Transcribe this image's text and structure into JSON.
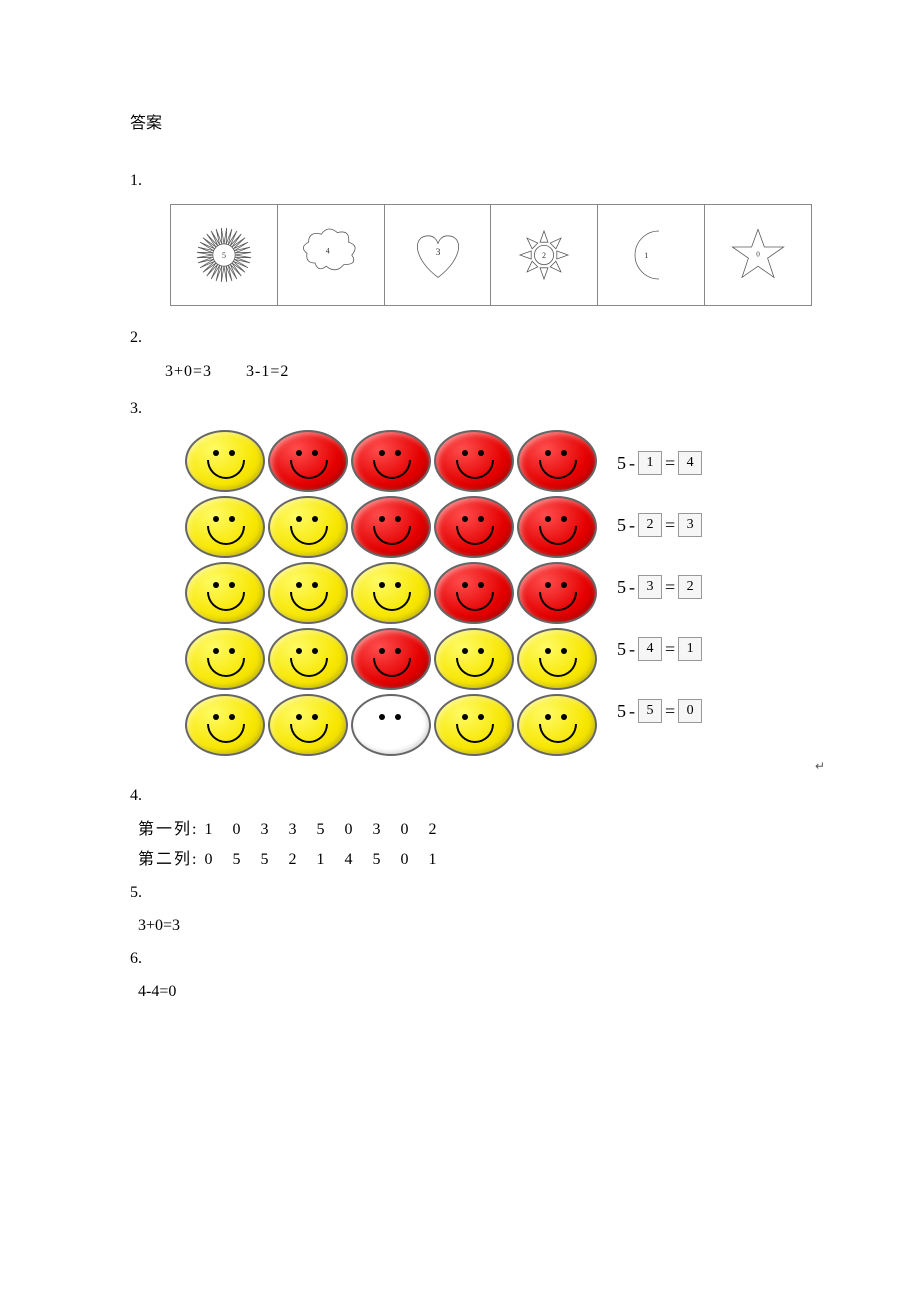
{
  "title": "答案",
  "q1": {
    "num": "1.",
    "shapes": [
      {
        "kind": "sunburst",
        "label": "5"
      },
      {
        "kind": "cloud",
        "label": "4"
      },
      {
        "kind": "heart",
        "label": "3"
      },
      {
        "kind": "sun8",
        "label": "2"
      },
      {
        "kind": "moon",
        "label": "1"
      },
      {
        "kind": "star",
        "label": "0"
      }
    ],
    "stroke": "#5a5a5a"
  },
  "q2": {
    "num": "2.",
    "line": "3+0=3　　3-1=2"
  },
  "q3": {
    "num": "3.",
    "colors": {
      "yellow": "#f7e600",
      "red": "#e40000",
      "empty": "#ffffff",
      "border": "#666666"
    },
    "rows": [
      {
        "faces": [
          "yellow",
          "red",
          "red",
          "red",
          "red"
        ],
        "eq": {
          "a": "5",
          "b": "1",
          "r": "4"
        }
      },
      {
        "faces": [
          "yellow",
          "yellow",
          "red",
          "red",
          "red"
        ],
        "eq": {
          "a": "5",
          "b": "2",
          "r": "3"
        }
      },
      {
        "faces": [
          "yellow",
          "yellow",
          "yellow",
          "red",
          "red"
        ],
        "eq": {
          "a": "5",
          "b": "3",
          "r": "2"
        }
      },
      {
        "faces": [
          "yellow",
          "yellow",
          "red",
          "yellow",
          "yellow"
        ],
        "eq": {
          "a": "5",
          "b": "4",
          "r": "1"
        }
      },
      {
        "faces": [
          "yellow",
          "yellow",
          "empty",
          "yellow",
          "yellow"
        ],
        "eq": {
          "a": "5",
          "b": "5",
          "r": "0"
        }
      }
    ],
    "arrow": "↵"
  },
  "q4": {
    "num": "4.",
    "line1_label": "第一列:",
    "line1_vals": [
      "1",
      "0",
      "3",
      "3",
      "5",
      "0",
      "3",
      "0",
      "2"
    ],
    "line2_label": "第二列:",
    "line2_vals": [
      "0",
      "5",
      "5",
      "2",
      "1",
      "4",
      "5",
      "0",
      "1"
    ]
  },
  "q5": {
    "num": "5.",
    "ans": "3+0=3"
  },
  "q6": {
    "num": "6.",
    "ans": "4-4=0"
  }
}
